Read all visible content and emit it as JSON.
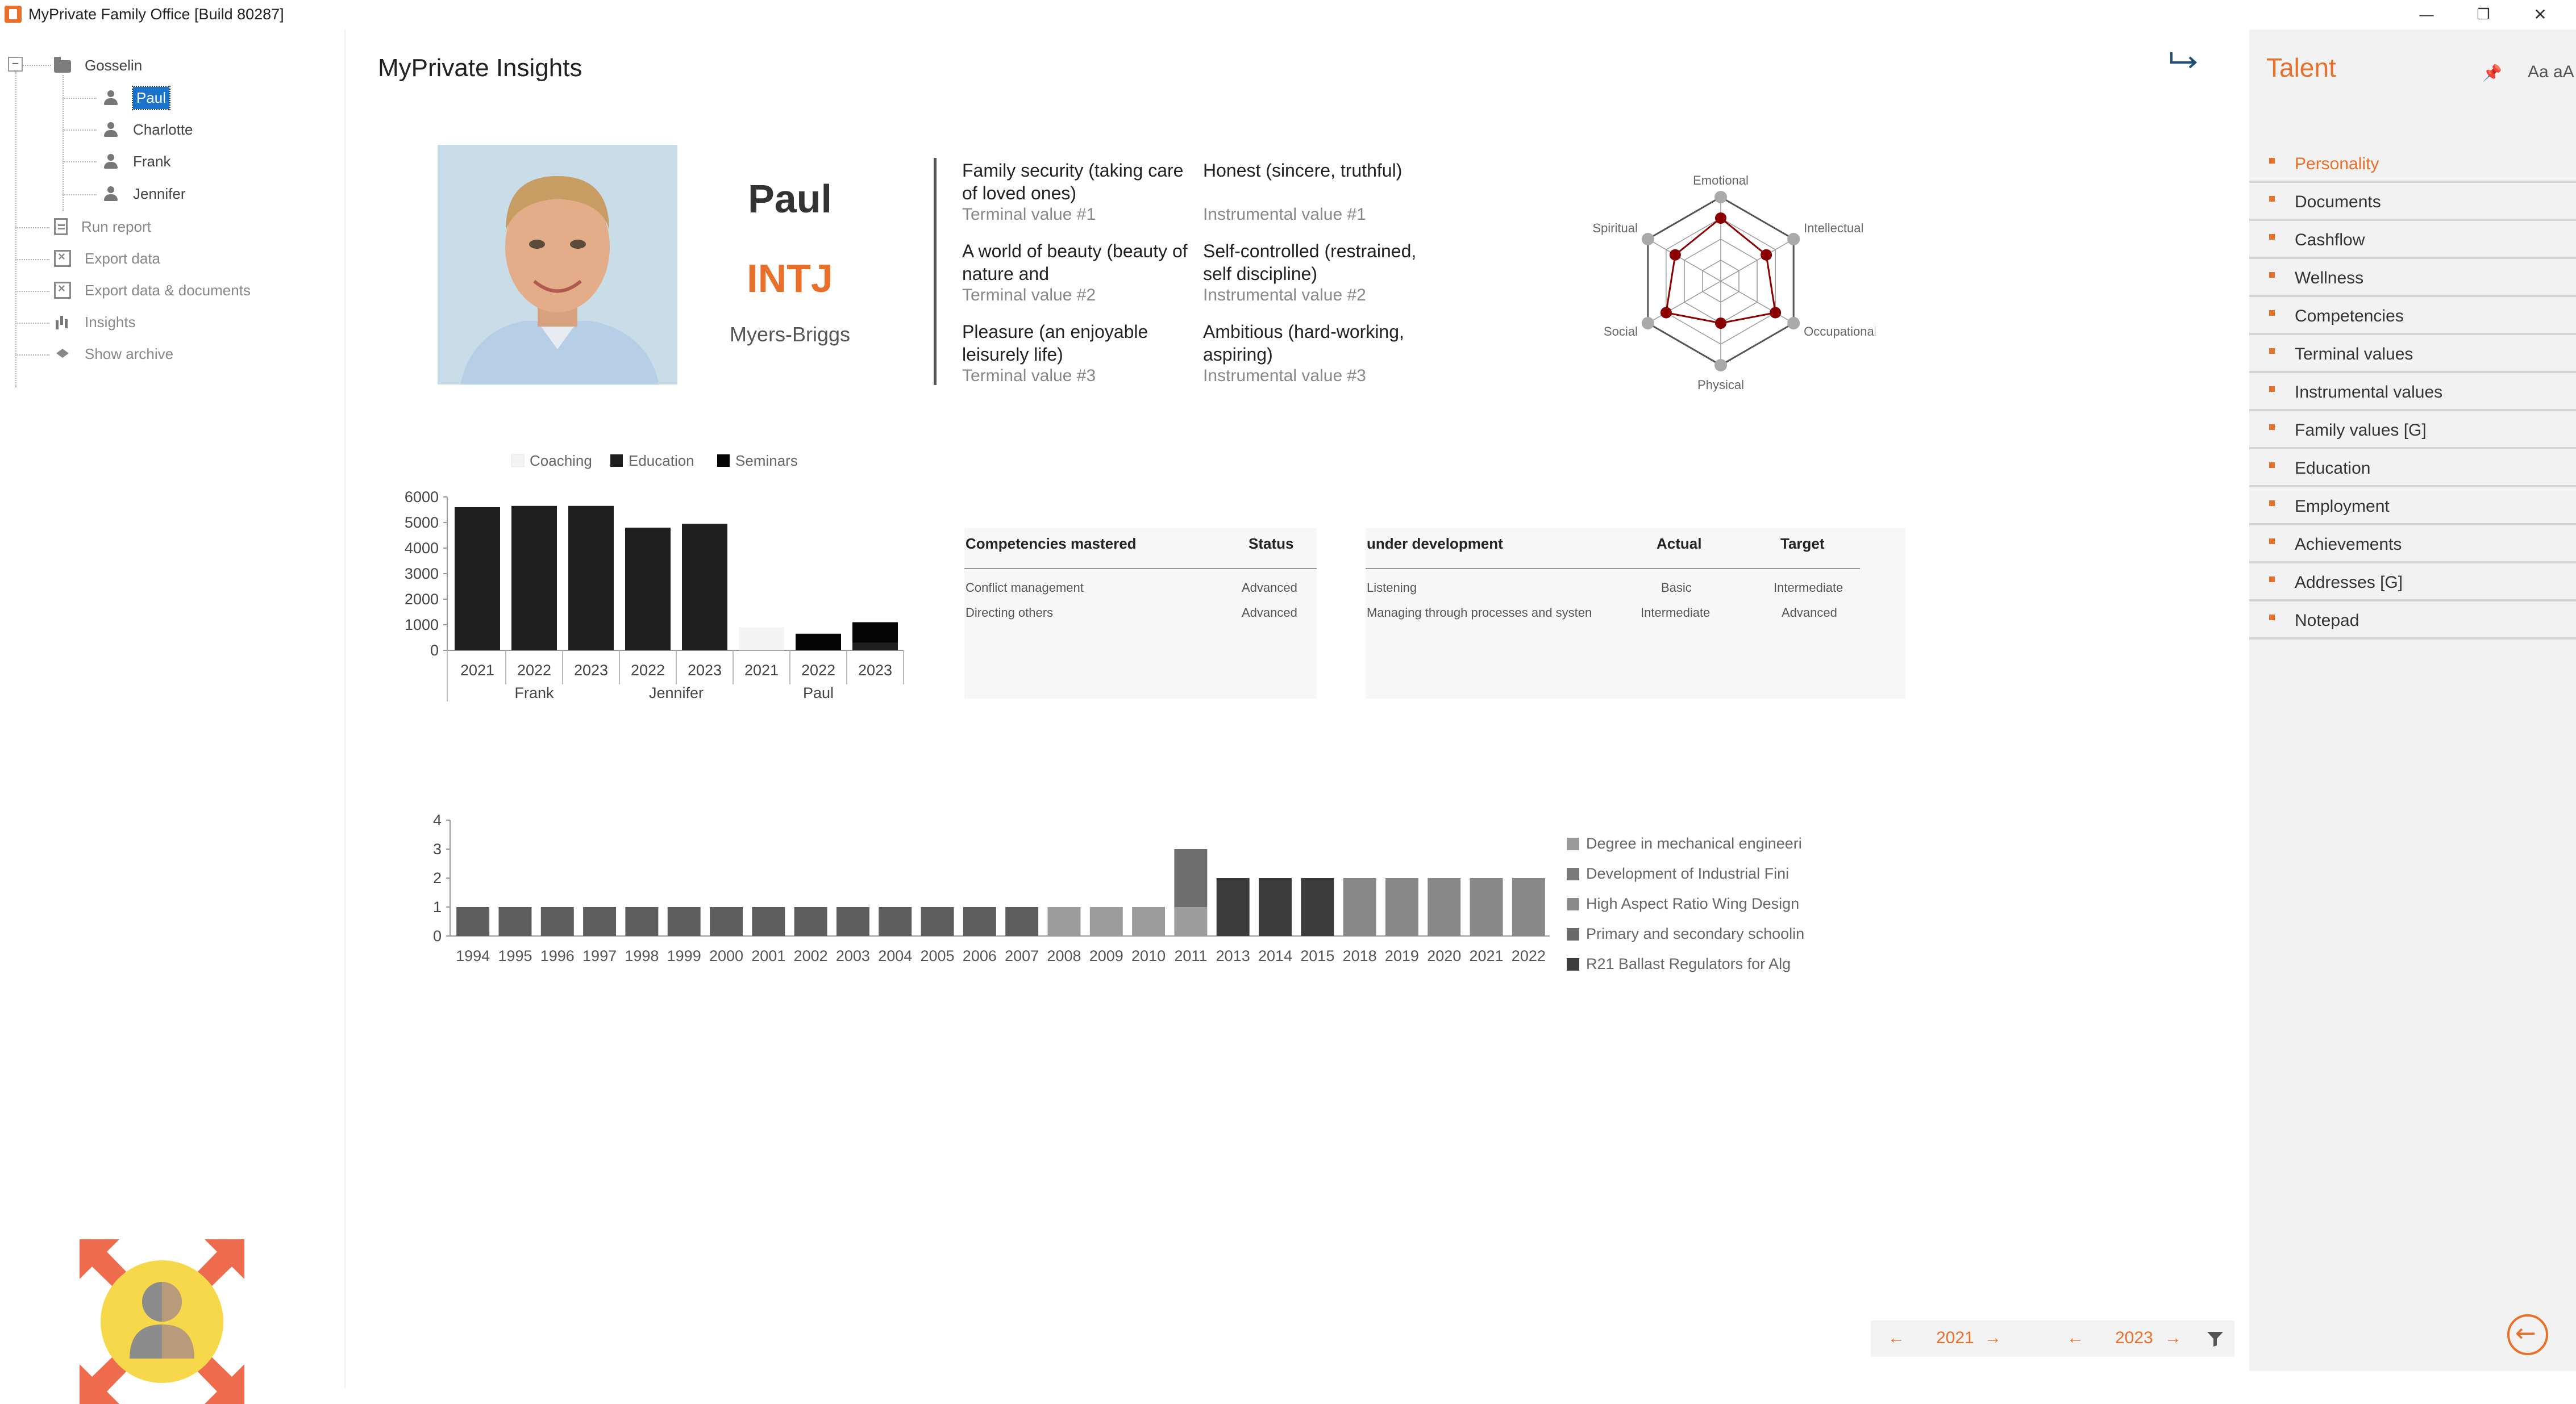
{
  "window": {
    "title": "MyPrivate Family Office [Build 80287]",
    "controls": [
      "—",
      "❐",
      "✕"
    ]
  },
  "tree": {
    "root": "Gosselin",
    "members": [
      "Paul",
      "Charlotte",
      "Frank",
      "Jennifer"
    ],
    "selected": "Paul",
    "actions": [
      "Run report",
      "Export data",
      "Export data & documents",
      "Insights",
      "Show archive"
    ]
  },
  "main": {
    "title": "MyPrivate Insights",
    "profile": {
      "name": "Paul",
      "mbti": "INTJ",
      "mbti_label": "Myers-Briggs"
    },
    "values": {
      "terminal": [
        {
          "text": "Family security (taking care of loved ones)",
          "label": "Terminal value #1"
        },
        {
          "text": "A world of beauty (beauty of nature and",
          "label": "Terminal value #2"
        },
        {
          "text": "Pleasure (an enjoyable leisurely life)",
          "label": "Terminal value #3"
        }
      ],
      "instrumental": [
        {
          "text": "Honest (sincere, truthful)",
          "label": "Instrumental value #1"
        },
        {
          "text": "Self-controlled (restrained, self discipline)",
          "label": "Instrumental value #2"
        },
        {
          "text": "Ambitious (hard-working, aspiring)",
          "label": "Instrumental value #3"
        }
      ]
    },
    "competencies": {
      "mastered": {
        "headers": [
          "Competencies mastered",
          "Status"
        ],
        "rows": [
          [
            "Conflict management",
            "Advanced"
          ],
          [
            "Directing others",
            "Advanced"
          ]
        ]
      },
      "development": {
        "headers": [
          "under development",
          "Actual",
          "Target"
        ],
        "rows": [
          [
            "Listening",
            "Basic",
            "Intermediate"
          ],
          [
            "Managing through processes and systen",
            "Intermediate",
            "Advanced"
          ]
        ]
      }
    }
  },
  "chart_data": [
    {
      "type": "radar",
      "axes": [
        "Emotional",
        "Intellectual",
        "Occupational",
        "Physical",
        "Social",
        "Spiritual"
      ],
      "rmax": 4,
      "series": [
        {
          "values": [
            3,
            2.5,
            3,
            2,
            3,
            2.5
          ],
          "color": "#8b0000"
        },
        {
          "values": [
            4,
            4,
            4,
            4,
            4,
            4
          ],
          "color": "#aaaaaa"
        }
      ]
    },
    {
      "type": "bar",
      "legend": [
        "Coaching",
        "Education",
        "Seminars"
      ],
      "legend_colors": [
        "#f4f4f4",
        "#1e1e1e",
        "#050505"
      ],
      "groups": [
        "Frank",
        "Jennifer",
        "Paul"
      ],
      "categories": [
        "2021",
        "2022",
        "2023",
        "2022",
        "2023",
        "2021",
        "2022",
        "2023"
      ],
      "group_of_category": [
        0,
        0,
        0,
        1,
        1,
        2,
        2,
        2
      ],
      "series": [
        {
          "values": [
            0,
            0,
            0,
            0,
            0,
            900,
            0,
            0
          ]
        },
        {
          "values": [
            5600,
            5650,
            5650,
            4800,
            4950,
            0,
            0,
            300
          ]
        },
        {
          "values": [
            0,
            0,
            0,
            0,
            0,
            0,
            650,
            800
          ]
        }
      ],
      "ylim": [
        0,
        6000
      ],
      "yticks": [
        0,
        1000,
        2000,
        3000,
        4000,
        5000,
        6000
      ]
    },
    {
      "type": "bar",
      "stacked": true,
      "categories": [
        "1994",
        "1995",
        "1996",
        "1997",
        "1998",
        "1999",
        "2000",
        "2001",
        "2002",
        "2003",
        "2004",
        "2005",
        "2006",
        "2007",
        "2008",
        "2009",
        "2010",
        "2011",
        "2013",
        "2014",
        "2015",
        "2018",
        "2019",
        "2020",
        "2021",
        "2022"
      ],
      "legend": [
        "Degree in mechanical engineeri",
        "Development of Industrial Fini",
        "High Aspect Ratio Wing Design",
        "Primary and secondary schoolin",
        "R21 Ballast Regulators for Alg"
      ],
      "legend_colors": [
        "#9a9a9a",
        "#7a7a7a",
        "#8a8a8a",
        "#6a6a6a",
        "#3e3e3e"
      ],
      "series": [
        {
          "name": "Primary and secondary schoolin",
          "values": [
            1,
            1,
            1,
            1,
            1,
            1,
            1,
            1,
            1,
            1,
            1,
            1,
            1,
            1,
            0,
            0,
            0,
            0,
            0,
            0,
            0,
            0,
            0,
            0,
            0,
            0
          ],
          "color": "#5e5e5e"
        },
        {
          "name": "Degree in mechanical engineeri",
          "values": [
            0,
            0,
            0,
            0,
            0,
            0,
            0,
            0,
            0,
            0,
            0,
            0,
            0,
            0,
            1,
            1,
            1,
            1,
            0,
            0,
            0,
            0,
            0,
            0,
            0,
            0
          ],
          "color": "#9c9c9c"
        },
        {
          "name": "Development of Industrial Fini",
          "values": [
            0,
            0,
            0,
            0,
            0,
            0,
            0,
            0,
            0,
            0,
            0,
            0,
            0,
            0,
            0,
            0,
            0,
            2,
            0,
            0,
            0,
            0,
            0,
            0,
            0,
            0
          ],
          "color": "#6e6e6e"
        },
        {
          "name": "R21 Ballast Regulators for Alg",
          "values": [
            0,
            0,
            0,
            0,
            0,
            0,
            0,
            0,
            0,
            0,
            0,
            0,
            0,
            0,
            0,
            0,
            0,
            0,
            2,
            2,
            2,
            0,
            0,
            0,
            0,
            0
          ],
          "color": "#3c3c3c"
        },
        {
          "name": "High Aspect Ratio Wing Design",
          "values": [
            0,
            0,
            0,
            0,
            0,
            0,
            0,
            0,
            0,
            0,
            0,
            0,
            0,
            0,
            0,
            0,
            0,
            0,
            0,
            0,
            0,
            2,
            2,
            2,
            2,
            2
          ],
          "color": "#888888"
        }
      ],
      "ylim": [
        0,
        4
      ],
      "yticks": [
        0,
        1,
        2,
        3,
        4
      ]
    }
  ],
  "footer": {
    "from_year": "2021",
    "to_year": "2023",
    "arrow_prev": "←",
    "arrow_next": "→"
  },
  "right_panel": {
    "title": "Talent",
    "font_toggle": "Aa aA",
    "pin_glyph": "📌",
    "active": "Personality",
    "items": [
      "Personality",
      "Documents",
      "Cashflow",
      "Wellness",
      "Competencies",
      "Terminal values",
      "Instrumental values",
      "Family values [G]",
      "Education",
      "Employment",
      "Achievements",
      "Addresses [G]",
      "Notepad"
    ]
  }
}
